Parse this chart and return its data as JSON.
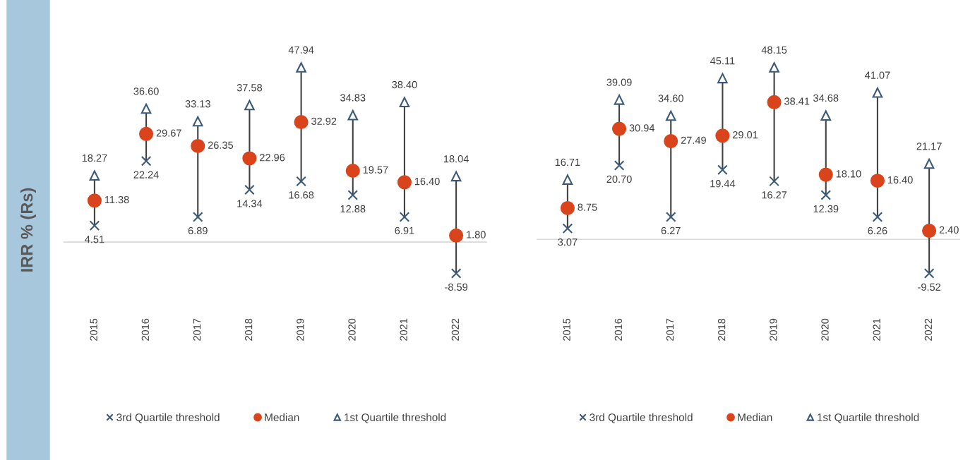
{
  "chart_data": [
    {
      "type": "scatter",
      "ylabel": "IRR % (Rs)",
      "categories": [
        "2015",
        "2016",
        "2017",
        "2018",
        "2019",
        "2020",
        "2021",
        "2022"
      ],
      "legend": "bottom",
      "ref_lines": [
        {
          "axis": "y",
          "value": 0,
          "color": "#d9d9d9"
        }
      ],
      "series": [
        {
          "name": "3rd Quartile threshold",
          "color": "#3b5a78",
          "marker": "cross",
          "values": [
            4.51,
            22.24,
            6.89,
            14.34,
            16.68,
            12.88,
            6.91,
            -8.59
          ],
          "value_labels": [
            "4.51",
            "22.24",
            "6.89",
            "14.34",
            "16.68",
            "12.88",
            "6.91",
            "-8.59"
          ]
        },
        {
          "name": "Median",
          "color": "#d9441c",
          "marker": "circle",
          "values": [
            11.38,
            29.67,
            26.35,
            22.96,
            32.92,
            19.57,
            16.4,
            1.8
          ],
          "value_labels": [
            "11.38",
            "29.67",
            "26.35",
            "22.96",
            "32.92",
            "19.57",
            "16.40",
            "1.80"
          ]
        },
        {
          "name": "1st Quartile threshold",
          "color": "#3b5a78",
          "marker": "triangle",
          "values": [
            18.27,
            36.6,
            33.13,
            37.58,
            47.94,
            34.83,
            38.4,
            18.04
          ],
          "value_labels": [
            "18.27",
            "36.60",
            "33.13",
            "37.58",
            "47.94",
            "34.83",
            "38.40",
            "18.04"
          ]
        }
      ]
    },
    {
      "type": "scatter",
      "categories": [
        "2015",
        "2016",
        "2017",
        "2018",
        "2019",
        "2020",
        "2021",
        "2022"
      ],
      "legend": "bottom",
      "ref_lines": [
        {
          "axis": "y",
          "value": 0,
          "color": "#d9d9d9"
        }
      ],
      "series": [
        {
          "name": "3rd Quartile threshold",
          "color": "#3b5a78",
          "marker": "cross",
          "values": [
            3.07,
            20.7,
            6.27,
            19.44,
            16.27,
            12.39,
            6.26,
            -9.52
          ],
          "value_labels": [
            "3.07",
            "20.70",
            "6.27",
            "19.44",
            "16.27",
            "12.39",
            "6.26",
            "-9.52"
          ]
        },
        {
          "name": "Median",
          "color": "#d9441c",
          "marker": "circle",
          "values": [
            8.75,
            30.94,
            27.49,
            29.01,
            38.41,
            18.1,
            16.4,
            2.4
          ],
          "value_labels": [
            "8.75",
            "30.94",
            "27.49",
            "29.01",
            "38.41",
            "18.10",
            "16.40",
            "2.40"
          ]
        },
        {
          "name": "1st Quartile threshold",
          "color": "#3b5a78",
          "marker": "triangle",
          "values": [
            16.71,
            39.09,
            34.6,
            45.11,
            48.15,
            34.68,
            41.07,
            21.17
          ],
          "value_labels": [
            "16.71",
            "39.09",
            "34.60",
            "45.11",
            "48.15",
            "34.68",
            "41.07",
            "21.17"
          ]
        }
      ]
    }
  ]
}
